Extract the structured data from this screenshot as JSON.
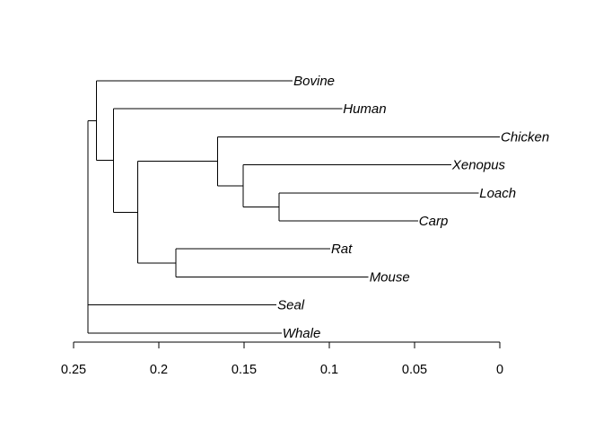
{
  "dendrogram": {
    "axis": {
      "reversed": true,
      "domain": [
        0.25,
        0
      ],
      "ticks": [
        {
          "value": 0.25,
          "label": "0.25"
        },
        {
          "value": 0.2,
          "label": "0.2"
        },
        {
          "value": 0.15,
          "label": "0.15"
        },
        {
          "value": 0.1,
          "label": "0.1"
        },
        {
          "value": 0.05,
          "label": "0.05"
        },
        {
          "value": 0,
          "label": "0"
        }
      ]
    },
    "leaves": [
      {
        "name": "Bovine",
        "height": 0.1215
      },
      {
        "name": "Human",
        "height": 0.0925
      },
      {
        "name": "Chicken",
        "height": 0.0
      },
      {
        "name": "Xenopus",
        "height": 0.0285
      },
      {
        "name": "Loach",
        "height": 0.0125
      },
      {
        "name": "Carp",
        "height": 0.048
      },
      {
        "name": "Rat",
        "height": 0.0995
      },
      {
        "name": "Mouse",
        "height": 0.077
      },
      {
        "name": "Seal",
        "height": 0.131
      },
      {
        "name": "Whale",
        "height": 0.128
      }
    ],
    "tree": {
      "height": 0.2415,
      "children": [
        {
          "height": 0.2365,
          "children": [
            {
              "leaf": 0
            },
            {
              "height": 0.2265,
              "children": [
                {
                  "leaf": 1
                },
                {
                  "height": 0.2125,
                  "children": [
                    {
                      "height": 0.1655,
                      "children": [
                        {
                          "leaf": 2
                        },
                        {
                          "height": 0.1505,
                          "children": [
                            {
                              "leaf": 3
                            },
                            {
                              "height": 0.1295,
                              "children": [
                                {
                                  "leaf": 4
                                },
                                {
                                  "leaf": 5
                                }
                              ]
                            }
                          ]
                        }
                      ]
                    },
                    {
                      "height": 0.19,
                      "children": [
                        {
                          "leaf": 6
                        },
                        {
                          "leaf": 7
                        }
                      ]
                    }
                  ]
                }
              ]
            }
          ]
        },
        {
          "leaf": 8
        },
        {
          "leaf": 9
        }
      ]
    }
  }
}
